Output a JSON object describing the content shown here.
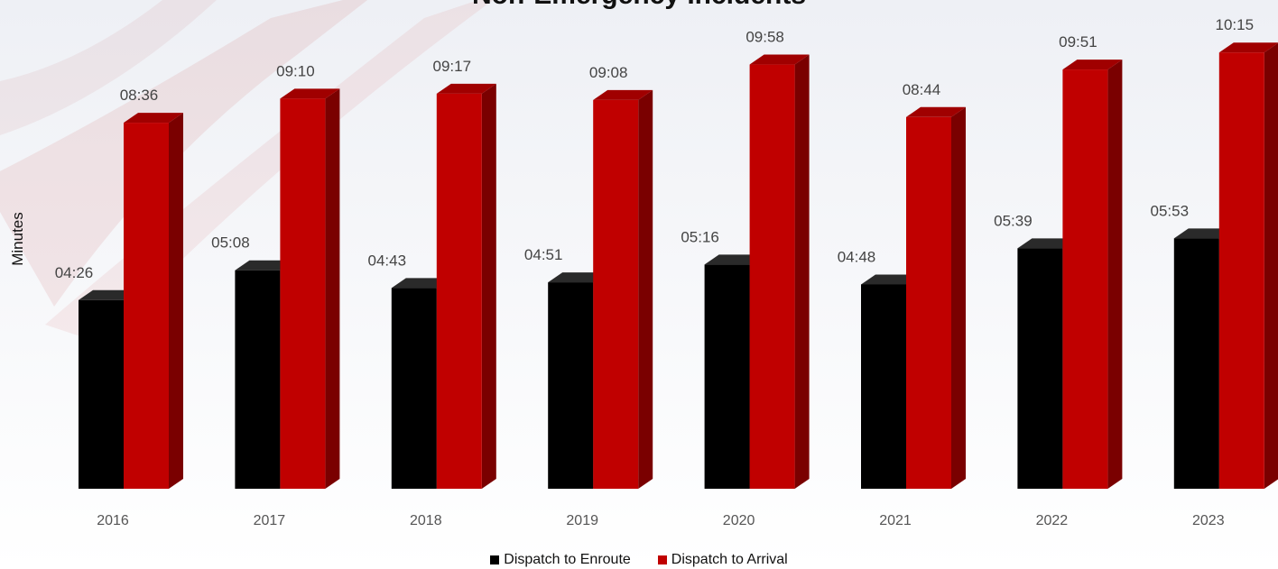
{
  "chart_data": {
    "type": "bar",
    "title": "Non-Emergency Incidents",
    "ylabel": "Minutes",
    "xlabel": "",
    "categories": [
      "2016",
      "2017",
      "2018",
      "2019",
      "2020",
      "2021",
      "2022",
      "2023"
    ],
    "series": [
      {
        "name": "Dispatch to Enroute",
        "color": "#000000",
        "values": [
          4.433,
          5.133,
          4.717,
          4.85,
          5.267,
          4.8,
          5.65,
          5.883
        ],
        "labels": [
          "04:26",
          "05:08",
          "04:43",
          "04:51",
          "05:16",
          "04:48",
          "05:39",
          "05:53"
        ]
      },
      {
        "name": "Dispatch to Arrival",
        "color": "#c00000",
        "values": [
          8.6,
          9.167,
          9.283,
          9.133,
          9.967,
          8.733,
          9.85,
          10.25
        ],
        "labels": [
          "08:36",
          "09:10",
          "09:17",
          "09:08",
          "09:58",
          "08:44",
          "09:51",
          "10:15"
        ]
      }
    ],
    "legend_position": "bottom",
    "grid": false,
    "three_d": true
  }
}
